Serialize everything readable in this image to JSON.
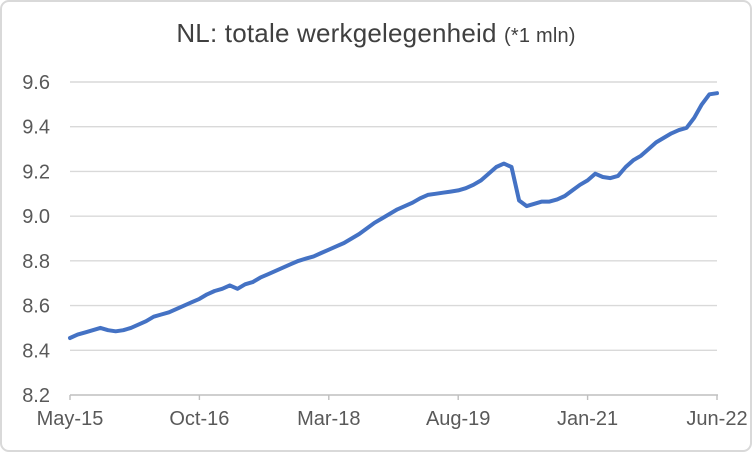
{
  "title": {
    "main": "NL: totale werkgelegenheid ",
    "suffix": "(*1 mln)"
  },
  "colors": {
    "series_line": "#4472C4",
    "gridline": "#D9D9D9",
    "axis_line": "#BFBFBF",
    "tick_label": "#595959",
    "title_text": "#404040",
    "chart_border": "#D9D9D9",
    "background": "#FFFFFF"
  },
  "chart_data": {
    "type": "line",
    "title": "NL: totale werkgelegenheid (*1 mln)",
    "frequency": "monthly",
    "x_start": "May-15",
    "x_end": "Jun-22",
    "x_tick_labels": [
      "May-15",
      "Oct-16",
      "Mar-18",
      "Aug-19",
      "Jan-21",
      "Jun-22"
    ],
    "x_tick_month_index": [
      0,
      17,
      34,
      51,
      68,
      85
    ],
    "y_tick_labels": [
      "9.6",
      "9.4",
      "9.2",
      "9.0",
      "8.8",
      "8.6",
      "8.4",
      "8.2"
    ],
    "y_ticks": [
      9.6,
      9.4,
      9.2,
      9.0,
      8.8,
      8.6,
      8.4,
      8.2
    ],
    "ylim": [
      8.2,
      9.6
    ],
    "grid": true,
    "legend_position": "none",
    "series": [
      {
        "name": "totale werkgelegenheid",
        "values": [
          8.455,
          8.47,
          8.48,
          8.49,
          8.5,
          8.49,
          8.485,
          8.49,
          8.5,
          8.515,
          8.53,
          8.55,
          8.56,
          8.57,
          8.585,
          8.6,
          8.615,
          8.63,
          8.65,
          8.665,
          8.675,
          8.69,
          8.675,
          8.695,
          8.705,
          8.725,
          8.74,
          8.755,
          8.77,
          8.785,
          8.8,
          8.81,
          8.82,
          8.835,
          8.85,
          8.865,
          8.88,
          8.9,
          8.92,
          8.945,
          8.97,
          8.99,
          9.01,
          9.03,
          9.045,
          9.06,
          9.08,
          9.095,
          9.1,
          9.105,
          9.11,
          9.115,
          9.125,
          9.14,
          9.16,
          9.19,
          9.22,
          9.235,
          9.22,
          9.07,
          9.045,
          9.055,
          9.065,
          9.065,
          9.075,
          9.09,
          9.115,
          9.14,
          9.16,
          9.19,
          9.175,
          9.17,
          9.18,
          9.22,
          9.25,
          9.27,
          9.3,
          9.33,
          9.35,
          9.37,
          9.385,
          9.395,
          9.44,
          9.5,
          9.545,
          9.55
        ]
      }
    ]
  }
}
